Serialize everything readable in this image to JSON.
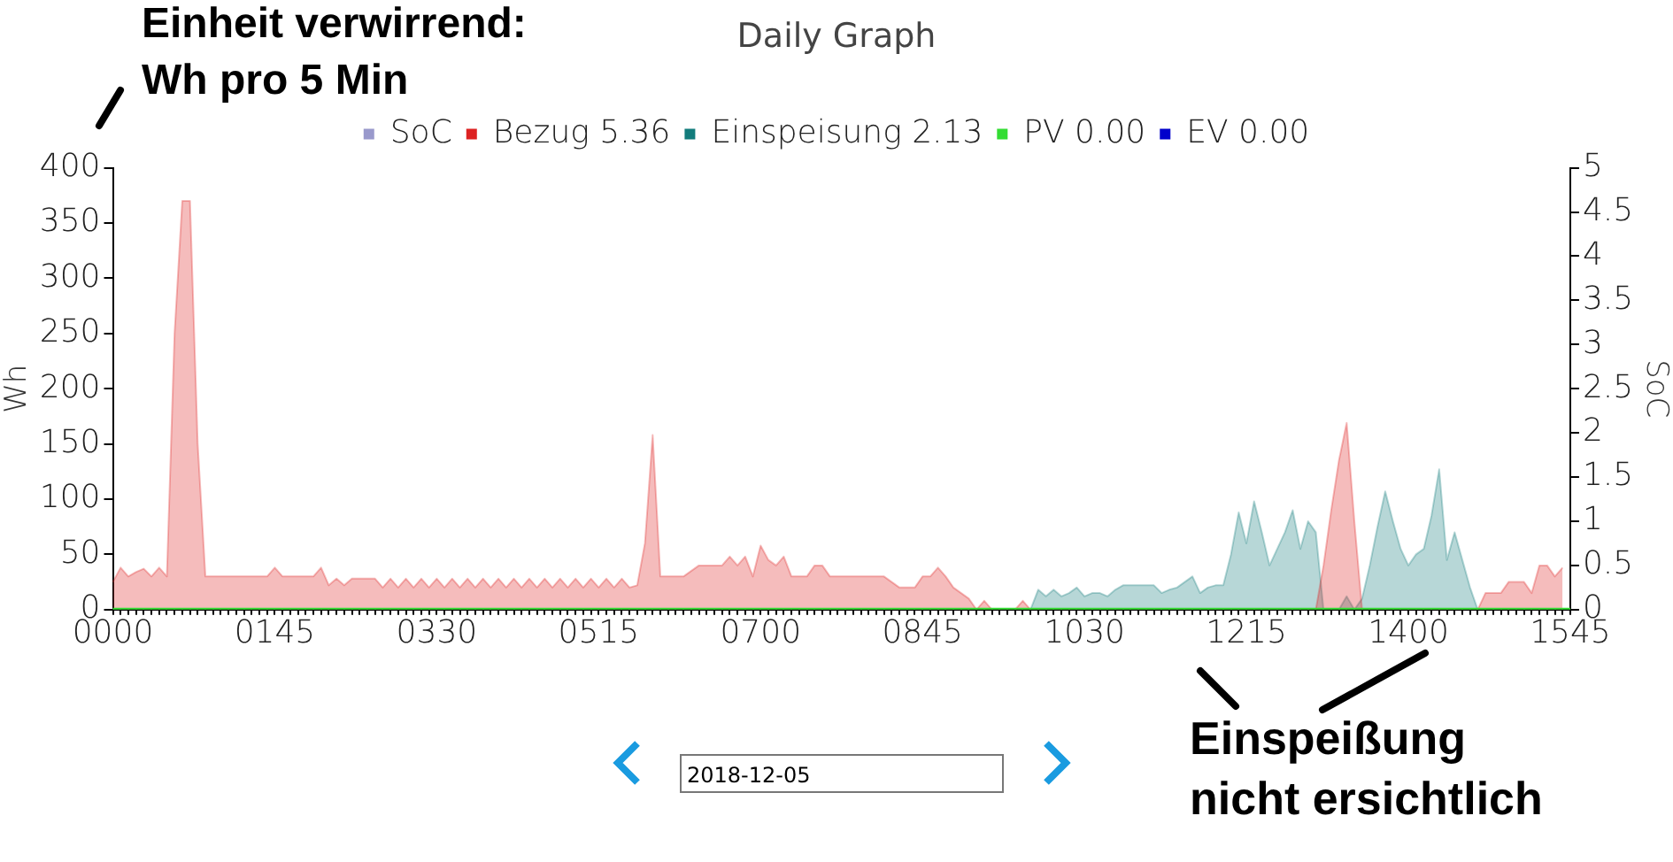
{
  "chart_data": {
    "type": "area",
    "title": "Daily Graph",
    "ylabel": "Wh",
    "y2label": "SoC",
    "categories": [
      "0000",
      null,
      null,
      null,
      null,
      null,
      null,
      null,
      null,
      null,
      null,
      null,
      null,
      null,
      null,
      null,
      null,
      null,
      null,
      null,
      null,
      "0145",
      null,
      null,
      null,
      null,
      null,
      null,
      null,
      null,
      null,
      null,
      null,
      null,
      null,
      null,
      null,
      null,
      null,
      null,
      null,
      null,
      "0330",
      null,
      null,
      null,
      null,
      null,
      null,
      null,
      null,
      null,
      null,
      null,
      null,
      null,
      null,
      null,
      null,
      null,
      null,
      null,
      null,
      "0515",
      null,
      null,
      null,
      null,
      null,
      null,
      null,
      null,
      null,
      null,
      null,
      null,
      null,
      null,
      null,
      null,
      null,
      null,
      null,
      null,
      "0700",
      null,
      null,
      null,
      null,
      null,
      null,
      null,
      null,
      null,
      null,
      null,
      null,
      null,
      null,
      null,
      null,
      null,
      null,
      null,
      null,
      "0845",
      null,
      null,
      null,
      null,
      null,
      null,
      null,
      null,
      null,
      null,
      null,
      null,
      null,
      null,
      null,
      null,
      null,
      null,
      null,
      null,
      "1030",
      null,
      null,
      null,
      null,
      null,
      null,
      null,
      null,
      null,
      null,
      null,
      null,
      null,
      null,
      null,
      null,
      null,
      null,
      null,
      null,
      "1215",
      null,
      null,
      null,
      null,
      null,
      null,
      null,
      null,
      null,
      null,
      null,
      null,
      null,
      null,
      null,
      null,
      null,
      null,
      null,
      null,
      "1400",
      null,
      null,
      null,
      null,
      null,
      null,
      null,
      null,
      null,
      null,
      null,
      null,
      null,
      null,
      null,
      null,
      null,
      null,
      null,
      null,
      "1545"
    ],
    "ylim": [
      0,
      400
    ],
    "yticks": [
      0,
      50,
      100,
      150,
      200,
      250,
      300,
      350,
      400
    ],
    "y2lim": [
      0,
      5
    ],
    "y2ticks": [
      0,
      0.5,
      1,
      1.5,
      2,
      2.5,
      3,
      3.5,
      4,
      4.5,
      5
    ],
    "grid": false,
    "legend": "top",
    "marker": "none",
    "series": [
      {
        "name": "SoC",
        "type": "line",
        "color": "#9999cc",
        "values": [
          null,
          null,
          null,
          null,
          null,
          null,
          null,
          null,
          null,
          null,
          null,
          null,
          null,
          null,
          null,
          null,
          null,
          null,
          null,
          null,
          null,
          null,
          null,
          null,
          null,
          null,
          null,
          null,
          null,
          null,
          null,
          null,
          null,
          null,
          null,
          null,
          null,
          null,
          null,
          null,
          null,
          null,
          null,
          null,
          null,
          null,
          null,
          null,
          null,
          null,
          null,
          null,
          null,
          null,
          null,
          null,
          null,
          null,
          null,
          null,
          null,
          null,
          null,
          null,
          null,
          null,
          null,
          null,
          null,
          null,
          null,
          null,
          null,
          null,
          null,
          null,
          null,
          null,
          null,
          null,
          null,
          null,
          null,
          null,
          null,
          null,
          null,
          null,
          null,
          null,
          null,
          null,
          null,
          null,
          null,
          null,
          null,
          null,
          null,
          null,
          null,
          null,
          null,
          null,
          null,
          null,
          null,
          null,
          null,
          null,
          null,
          null,
          null,
          null,
          null,
          null,
          null,
          null,
          null,
          null,
          null,
          null,
          null,
          null,
          null,
          null,
          null,
          null,
          null,
          null,
          null,
          null,
          null,
          null,
          null,
          null,
          null,
          null,
          null,
          null,
          null,
          null,
          null,
          null,
          null,
          null,
          null,
          null,
          null,
          null,
          null,
          null,
          null,
          null,
          null,
          null,
          null,
          null,
          null,
          null,
          null,
          null,
          null,
          null,
          null,
          null,
          null,
          null,
          null,
          null,
          null,
          null,
          null,
          null,
          null,
          null,
          null,
          null,
          null,
          null,
          null,
          null,
          null,
          null,
          null,
          null,
          null,
          null,
          null,
          null
        ]
      },
      {
        "name": "Bezug 5.36",
        "color": "#dd2222",
        "values": [
          25,
          38,
          30,
          34,
          37,
          30,
          38,
          30,
          250,
          370,
          370,
          150,
          30,
          30,
          30,
          30,
          30,
          30,
          30,
          30,
          30,
          38,
          30,
          30,
          30,
          30,
          30,
          38,
          22,
          28,
          22,
          28,
          28,
          28,
          28,
          20,
          28,
          20,
          28,
          20,
          28,
          20,
          28,
          20,
          28,
          20,
          28,
          20,
          28,
          20,
          28,
          20,
          28,
          20,
          28,
          20,
          28,
          20,
          28,
          20,
          28,
          20,
          28,
          20,
          28,
          20,
          28,
          20,
          22,
          60,
          158,
          30,
          30,
          30,
          30,
          35,
          40,
          40,
          40,
          40,
          48,
          40,
          48,
          30,
          58,
          45,
          40,
          48,
          30,
          30,
          30,
          40,
          40,
          30,
          30,
          30,
          30,
          30,
          30,
          30,
          30,
          25,
          20,
          20,
          20,
          30,
          30,
          38,
          30,
          20,
          15,
          10,
          0,
          8,
          0,
          0,
          0,
          0,
          8,
          0,
          0,
          0,
          0,
          0,
          0,
          0,
          0,
          0,
          0,
          0,
          0,
          0,
          0,
          0,
          0,
          0,
          0,
          0,
          0,
          0,
          0,
          0,
          0,
          0,
          0,
          0,
          0,
          0,
          0,
          0,
          0,
          0,
          0,
          0,
          0,
          0,
          0,
          40,
          90,
          135,
          169,
          80,
          0,
          0,
          0,
          0,
          0,
          0,
          0,
          0,
          0,
          0,
          0,
          0,
          0,
          0,
          0,
          0,
          15,
          15,
          15,
          25,
          25,
          25,
          15,
          40,
          40,
          30,
          38,
          null
        ]
      },
      {
        "name": "Einspeisung 2.13",
        "color": "#127c7c",
        "values": [
          0,
          0,
          0,
          0,
          0,
          0,
          0,
          0,
          0,
          0,
          0,
          0,
          0,
          0,
          0,
          0,
          0,
          0,
          0,
          0,
          0,
          0,
          0,
          0,
          0,
          0,
          0,
          0,
          0,
          0,
          0,
          0,
          0,
          0,
          0,
          0,
          0,
          0,
          0,
          0,
          0,
          0,
          0,
          0,
          0,
          0,
          0,
          0,
          0,
          0,
          0,
          0,
          0,
          0,
          0,
          0,
          0,
          0,
          0,
          0,
          0,
          0,
          0,
          0,
          0,
          0,
          0,
          0,
          0,
          0,
          0,
          0,
          0,
          0,
          0,
          0,
          0,
          0,
          0,
          0,
          0,
          0,
          0,
          0,
          0,
          0,
          0,
          0,
          0,
          0,
          0,
          0,
          0,
          0,
          0,
          0,
          0,
          0,
          0,
          0,
          0,
          0,
          0,
          0,
          0,
          0,
          0,
          0,
          0,
          0,
          0,
          0,
          0,
          0,
          0,
          0,
          0,
          0,
          0,
          0,
          18,
          12,
          18,
          12,
          15,
          20,
          12,
          15,
          15,
          12,
          18,
          22,
          22,
          22,
          22,
          22,
          15,
          18,
          20,
          25,
          30,
          15,
          20,
          22,
          22,
          50,
          88,
          60,
          98,
          70,
          40,
          55,
          70,
          90,
          55,
          80,
          70,
          0,
          0,
          0,
          12,
          0,
          10,
          40,
          75,
          107,
          80,
          55,
          40,
          50,
          55,
          85,
          127,
          45,
          70,
          45,
          20,
          0,
          0,
          0,
          0,
          0,
          0,
          0,
          0,
          0,
          0,
          0,
          0,
          0
        ]
      },
      {
        "name": "PV 0.00",
        "type": "line",
        "color": "#33dd33",
        "values": [
          0,
          0,
          0,
          0,
          0,
          0,
          0,
          0,
          0,
          0,
          0,
          0,
          0,
          0,
          0,
          0,
          0,
          0,
          0,
          0,
          0,
          0,
          0,
          0,
          0,
          0,
          0,
          0,
          0,
          0,
          0,
          0,
          0,
          0,
          0,
          0,
          0,
          0,
          0,
          0,
          0,
          0,
          0,
          0,
          0,
          0,
          0,
          0,
          0,
          0,
          0,
          0,
          0,
          0,
          0,
          0,
          0,
          0,
          0,
          0,
          0,
          0,
          0,
          0,
          0,
          0,
          0,
          0,
          0,
          0,
          0,
          0,
          0,
          0,
          0,
          0,
          0,
          0,
          0,
          0,
          0,
          0,
          0,
          0,
          0,
          0,
          0,
          0,
          0,
          0,
          0,
          0,
          0,
          0,
          0,
          0,
          0,
          0,
          0,
          0,
          0,
          0,
          0,
          0,
          0,
          0,
          0,
          0,
          0,
          0,
          0,
          0,
          0,
          0,
          0,
          0,
          0,
          0,
          0,
          0,
          0,
          0,
          0,
          0,
          0,
          0,
          0,
          0,
          0,
          0,
          0,
          0,
          0,
          0,
          0,
          0,
          0,
          0,
          0,
          0,
          0,
          0,
          0,
          0,
          0,
          0,
          0,
          0,
          0,
          0,
          0,
          0,
          0,
          0,
          0,
          0,
          0,
          0,
          0,
          0,
          0,
          0,
          0,
          0,
          0,
          0,
          0,
          0,
          0,
          0,
          0,
          0,
          0,
          0,
          0,
          0,
          0,
          0,
          0,
          0,
          0,
          0,
          0,
          0,
          0,
          0,
          0,
          0,
          0,
          0
        ]
      },
      {
        "name": "EV 0.00",
        "type": "line",
        "color": "#0000cc",
        "values": [
          null,
          null,
          null,
          null,
          null,
          null,
          null,
          null,
          null,
          null,
          null,
          null,
          null,
          null,
          null,
          null,
          null,
          null,
          null,
          null,
          null,
          null,
          null,
          null,
          null,
          null,
          null,
          null,
          null,
          null,
          null,
          null,
          null,
          null,
          null,
          null,
          null,
          null,
          null,
          null,
          null,
          null,
          null,
          null,
          null,
          null,
          null,
          null,
          null,
          null,
          null,
          null,
          null,
          null,
          null,
          null,
          null,
          null,
          null,
          null,
          null,
          null,
          null,
          null,
          null,
          null,
          null,
          null,
          null,
          null,
          null,
          null,
          null,
          null,
          null,
          null,
          null,
          null,
          null,
          null,
          null,
          null,
          null,
          null,
          null,
          null,
          null,
          null,
          null,
          null,
          null,
          null,
          null,
          null,
          null,
          null,
          null,
          null,
          null,
          null,
          null,
          null,
          null,
          null,
          null,
          null,
          null,
          null,
          null,
          null,
          null,
          null,
          null,
          null,
          null,
          null,
          null,
          null,
          null,
          null,
          null,
          null,
          null,
          null,
          null,
          null,
          null,
          null,
          null,
          null,
          null,
          null,
          null,
          null,
          null,
          null,
          null,
          null,
          null,
          null,
          null,
          null,
          null,
          null,
          null,
          null,
          null,
          null,
          null,
          null,
          null,
          null,
          null,
          null,
          null,
          null,
          null,
          null,
          null,
          null,
          null,
          null,
          null,
          null,
          null,
          null,
          null,
          null,
          null,
          null,
          null,
          null,
          null,
          null,
          null,
          null,
          null,
          null,
          null,
          null,
          null,
          null,
          null,
          null,
          null,
          null,
          null,
          null,
          null,
          null
        ]
      }
    ],
    "annotations": [
      "Einheit verwirrend:",
      "Wh pro 5 Min",
      "2018-12-05",
      "Einspeißung",
      "nicht ersichtlich"
    ]
  }
}
